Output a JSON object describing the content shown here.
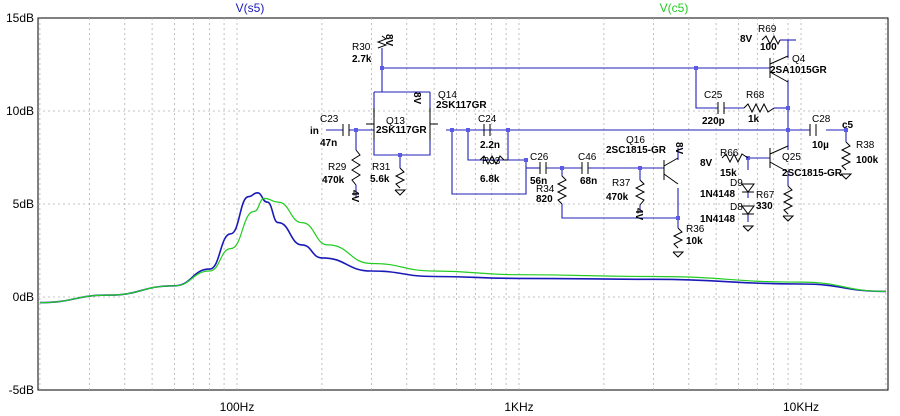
{
  "plot": {
    "traces": [
      {
        "name": "V(s5)",
        "color": "#1a1ab8"
      },
      {
        "name": "V(c5)",
        "color": "#22cc22"
      }
    ],
    "y_ticks": [
      "15dB",
      "10dB",
      "5dB",
      "0dB",
      "-5dB"
    ],
    "x_ticks": [
      "100Hz",
      "1KHz",
      "10KHz"
    ]
  },
  "chart_data": {
    "type": "line",
    "xscale": "log",
    "xlim": [
      20,
      20000
    ],
    "ylim": [
      -5,
      15
    ],
    "x_tick_values": [
      100,
      1000,
      10000
    ],
    "y_tick_values": [
      15,
      10,
      5,
      0,
      -5
    ],
    "series": [
      {
        "name": "V(s5)",
        "color": "#1a1ab8",
        "points": [
          [
            20,
            -0.3
          ],
          [
            35,
            0.1
          ],
          [
            60,
            0.6
          ],
          [
            80,
            1.5
          ],
          [
            95,
            3.4
          ],
          [
            110,
            5.4
          ],
          [
            118,
            5.6
          ],
          [
            128,
            5.1
          ],
          [
            140,
            4.0
          ],
          [
            170,
            2.8
          ],
          [
            200,
            2.1
          ],
          [
            300,
            1.4
          ],
          [
            500,
            1.1
          ],
          [
            1000,
            1.0
          ],
          [
            3000,
            0.95
          ],
          [
            10000,
            0.7
          ],
          [
            20000,
            0.3
          ]
        ]
      },
      {
        "name": "V(c5)",
        "color": "#22cc22",
        "points": [
          [
            20,
            -0.3
          ],
          [
            35,
            0.1
          ],
          [
            60,
            0.6
          ],
          [
            80,
            1.4
          ],
          [
            95,
            2.6
          ],
          [
            115,
            4.6
          ],
          [
            125,
            5.3
          ],
          [
            140,
            5.1
          ],
          [
            170,
            4.0
          ],
          [
            210,
            2.8
          ],
          [
            300,
            1.8
          ],
          [
            500,
            1.4
          ],
          [
            1000,
            1.2
          ],
          [
            3000,
            1.1
          ],
          [
            10000,
            0.8
          ],
          [
            20000,
            0.3
          ]
        ]
      }
    ]
  },
  "schematic": {
    "labels": {
      "r30_name": "R30",
      "r30_val": "2.7k",
      "r30_v": "8V",
      "q13_name": "Q13",
      "q13_model": "2SK117GR",
      "q14_name": "Q14",
      "q14_model": "2SK117GR",
      "q14_v": "8V",
      "c23_name": "C23",
      "c23_val": "47n",
      "in": "in",
      "r29_name": "R29",
      "r29_val": "470k",
      "r29_v": "4V",
      "r31_name": "R31",
      "r31_val": "5.6k",
      "c24_name": "C24",
      "c24_val": "2.2n",
      "r33_name": "R33",
      "r33_val": "6.8k",
      "c26_name": "C26",
      "c26_val": "56n",
      "c46_name": "C46",
      "c46_val": "68n",
      "r34_name": "R34",
      "r34_val": "820",
      "r37_name": "R37",
      "r37_val": "470k",
      "r37_v": "4V",
      "q16_name": "Q16",
      "q16_model": "2SC1815-GR",
      "q16_v": "8V",
      "r36_name": "R36",
      "r36_val": "10k",
      "r69_name": "R69",
      "r69_val": "100",
      "r69_v": "8V",
      "q4_name": "Q4",
      "q4_model": "2SA1015GR",
      "c25_name": "C25",
      "c25_val": "220p",
      "r68_name": "R68",
      "r68_val": "1k",
      "c28_name": "C28",
      "c28_val": "10µ",
      "c5": "c5",
      "r38_name": "R38",
      "r38_val": "100k",
      "r66_name": "R66",
      "r66_val": "15k",
      "r66_v": "8V",
      "q25_name": "Q25",
      "q25_model": "2SC1815-GR",
      "d9_name": "D9",
      "d9_model": "1N4148",
      "d8_name": "D8",
      "d8_model": "1N4148",
      "r67_name": "R67",
      "r67_val": "330"
    }
  }
}
